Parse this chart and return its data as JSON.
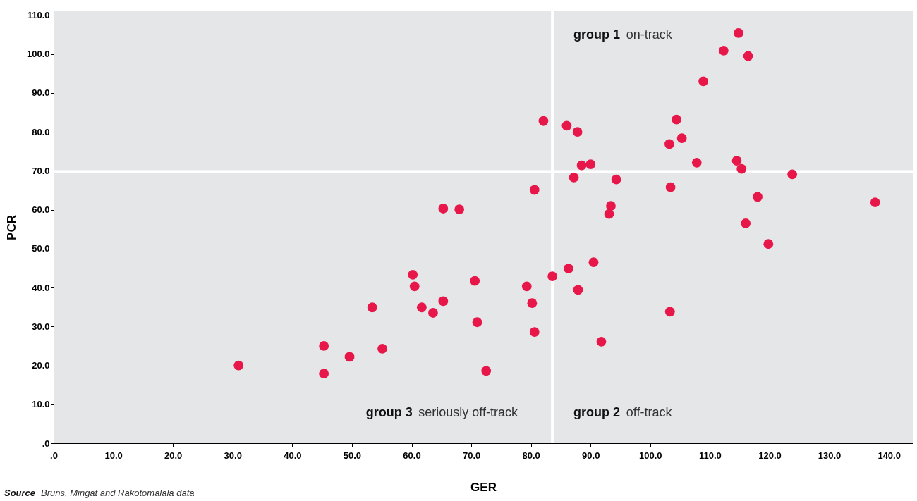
{
  "chart_data": {
    "type": "scatter",
    "xlabel": "GER",
    "ylabel": "PCR",
    "x": [
      31.0,
      45.3,
      45.3,
      49.6,
      53.4,
      55.1,
      60.2,
      60.5,
      61.7,
      63.6,
      65.3,
      65.3,
      68.0,
      70.6,
      71.0,
      72.5,
      79.3,
      80.2,
      80.6,
      80.6,
      82.1,
      83.6,
      86.0,
      86.3,
      87.2,
      87.8,
      87.9,
      88.5,
      90.0,
      90.5,
      91.8,
      93.1,
      93.4,
      94.3,
      103.2,
      103.3,
      103.4,
      104.4,
      105.3,
      107.8,
      108.9,
      112.3,
      114.5,
      114.8,
      115.3,
      116.0,
      116.4,
      118.0,
      119.8,
      123.8,
      137.7
    ],
    "series": [
      {
        "color": "#e8174a",
        "values": [
          20.0,
          25.0,
          17.9,
          22.2,
          34.9,
          24.3,
          43.3,
          40.3,
          34.9,
          33.5,
          60.3,
          36.5,
          60.1,
          41.7,
          31.1,
          18.6,
          40.3,
          36.0,
          65.1,
          28.6,
          82.8,
          42.9,
          81.6,
          44.9,
          68.3,
          80.0,
          39.4,
          71.4,
          71.7,
          46.5,
          26.1,
          58.9,
          61.0,
          67.8,
          76.9,
          33.8,
          65.8,
          83.2,
          78.4,
          72.1,
          93.0,
          100.9,
          72.6,
          105.4,
          70.5,
          56.5,
          99.5,
          63.3,
          51.2,
          69.1,
          61.9
        ]
      }
    ],
    "xlim": [
      0,
      144
    ],
    "ylim": [
      0,
      111
    ],
    "xticks": [
      {
        "value": 0,
        "label": ".0"
      },
      {
        "value": 10,
        "label": "10.0"
      },
      {
        "value": 20,
        "label": "20.0"
      },
      {
        "value": 30,
        "label": "30.0"
      },
      {
        "value": 40,
        "label": "40.0"
      },
      {
        "value": 50,
        "label": "50.0"
      },
      {
        "value": 60,
        "label": "60.0"
      },
      {
        "value": 70,
        "label": "70.0"
      },
      {
        "value": 80,
        "label": "80.0"
      },
      {
        "value": 90,
        "label": "90.0"
      },
      {
        "value": 100,
        "label": "100.0"
      },
      {
        "value": 110,
        "label": "110.0"
      },
      {
        "value": 120,
        "label": "120.0"
      },
      {
        "value": 130,
        "label": "130.0"
      },
      {
        "value": 140,
        "label": "140.0"
      }
    ],
    "yticks": [
      {
        "value": 0,
        "label": ".0"
      },
      {
        "value": 10,
        "label": "10.0"
      },
      {
        "value": 20,
        "label": "20.0"
      },
      {
        "value": 30,
        "label": "30.0"
      },
      {
        "value": 40,
        "label": "40.0"
      },
      {
        "value": 50,
        "label": "50.0"
      },
      {
        "value": 60,
        "label": "60.0"
      },
      {
        "value": 70,
        "label": "70.0"
      },
      {
        "value": 80,
        "label": "80.0"
      },
      {
        "value": 90,
        "label": "90.0"
      },
      {
        "value": 100,
        "label": "100.0"
      },
      {
        "value": 110,
        "label": "110.0"
      }
    ],
    "ref_lines": [
      {
        "axis": "x",
        "value": 83.6,
        "color": "#ffffff"
      },
      {
        "axis": "y",
        "value": 69.8,
        "color": "#ffffff"
      }
    ],
    "annotations": [
      "group 1 on-track",
      "group 2 off-track",
      "group 3 seriously off-track",
      "Source Bruns, Mingat and Rakotomalala data"
    ],
    "grid": false,
    "marker": "circle"
  }
}
